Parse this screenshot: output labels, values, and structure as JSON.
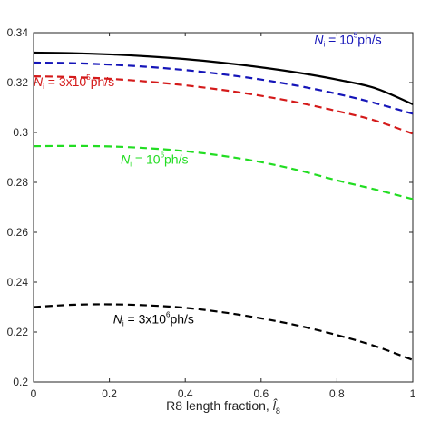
{
  "chart_data": {
    "type": "line",
    "xlabel": "R8 length fraction, ",
    "xlabel_symbol": "l̂",
    "xlabel_symbol_sub": "8",
    "xlim": [
      0,
      1
    ],
    "ylim": [
      0.2,
      0.34
    ],
    "x_ticks": [
      0,
      0.2,
      0.4,
      0.6,
      0.8,
      1
    ],
    "x_tick_labels": [
      "0",
      "0.2",
      "0.4",
      "0.6",
      "0.8",
      "1"
    ],
    "y_ticks": [
      0.2,
      0.22,
      0.24,
      0.26,
      0.28,
      0.3,
      0.32,
      0.34
    ],
    "y_tick_labels": [
      "0.2",
      "0.22",
      "0.24",
      "0.26",
      "0.28",
      "0.3",
      "0.32",
      "0.34"
    ],
    "grid": false,
    "x": [
      0,
      0.1,
      0.2,
      0.3,
      0.4,
      0.5,
      0.6,
      0.7,
      0.8,
      0.9,
      1.0
    ],
    "series": [
      {
        "style": "solid",
        "color": "#000000",
        "values": [
          0.332,
          0.3318,
          0.3313,
          0.3305,
          0.3294,
          0.3279,
          0.3261,
          0.3239,
          0.3212,
          0.3178,
          0.3113
        ]
      },
      {
        "style": "dashed",
        "color": "#1515b8",
        "values": [
          0.328,
          0.3278,
          0.3272,
          0.3263,
          0.325,
          0.3233,
          0.3212,
          0.3186,
          0.3155,
          0.3118,
          0.3075
        ]
      },
      {
        "style": "dashed",
        "color": "#d41a1a",
        "values": [
          0.3225,
          0.3222,
          0.3215,
          0.3204,
          0.3189,
          0.317,
          0.3147,
          0.3119,
          0.3086,
          0.3048,
          0.2995
        ]
      },
      {
        "style": "dashed",
        "color": "#22dd22",
        "values": [
          0.2945,
          0.2946,
          0.2944,
          0.2937,
          0.2925,
          0.2906,
          0.2881,
          0.2848,
          0.2808,
          0.2772,
          0.2733
        ]
      },
      {
        "style": "dashed",
        "color": "#000000",
        "values": [
          0.23,
          0.2309,
          0.2311,
          0.2307,
          0.2297,
          0.2279,
          0.2255,
          0.2225,
          0.2188,
          0.2144,
          0.2088
        ]
      }
    ],
    "annotations": [
      {
        "prefix": "N",
        "sub": "i",
        "middle": " = 10",
        "sup": "5",
        "suffix": "ph/s",
        "color": "#1515b8",
        "x": 0.74,
        "y": 0.3355
      },
      {
        "prefix": "N",
        "sub": "i",
        "middle": " = 3x10",
        "sup": "5",
        "suffix": "ph/s",
        "color": "#d41a1a",
        "x": 0.0,
        "y": 0.3185
      },
      {
        "prefix": "N",
        "sub": "i",
        "middle": " = 10",
        "sup": "6",
        "suffix": "ph/s",
        "color": "#22dd22",
        "x": 0.23,
        "y": 0.2875
      },
      {
        "prefix": "N",
        "sub": "i",
        "middle": " = 3x10",
        "sup": "6",
        "suffix": "ph/s",
        "color": "#000000",
        "x": 0.21,
        "y": 0.2235
      }
    ]
  }
}
